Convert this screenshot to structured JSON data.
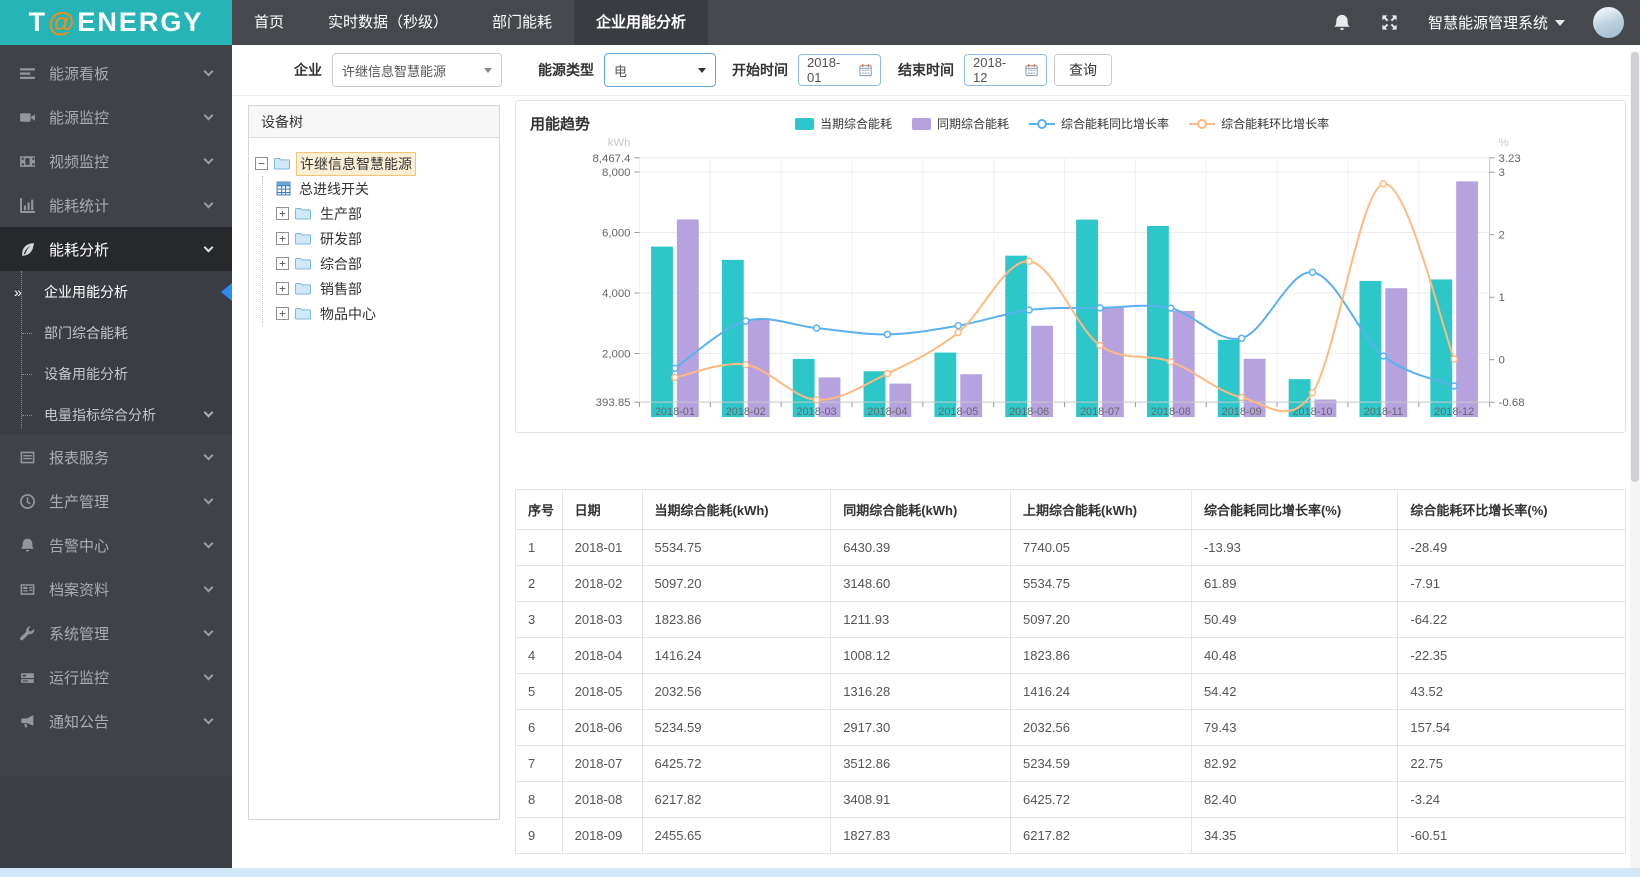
{
  "header": {
    "logo": {
      "part1": "T",
      "at": "@",
      "part2": "ENERGY"
    },
    "nav": [
      {
        "label": "首页",
        "active": false
      },
      {
        "label": "实时数据（秒级）",
        "active": false
      },
      {
        "label": "部门能耗",
        "active": false
      },
      {
        "label": "企业用能分析",
        "active": true
      }
    ],
    "system_title": "智慧能源管理系统"
  },
  "sidebar": {
    "items": [
      {
        "label": "能源看板",
        "icon": "dashboard-icon"
      },
      {
        "label": "能源监控",
        "icon": "camera-icon"
      },
      {
        "label": "视频监控",
        "icon": "film-icon"
      },
      {
        "label": "能耗统计",
        "icon": "bar-chart-icon"
      },
      {
        "label": "能耗分析",
        "icon": "leaf-icon",
        "expanded": true,
        "children": [
          {
            "label": "企业用能分析",
            "active": true
          },
          {
            "label": "部门综合能耗"
          },
          {
            "label": "设备用能分析"
          },
          {
            "label": "电量指标综合分析",
            "has_chevron": true
          }
        ]
      },
      {
        "label": "报表服务",
        "icon": "report-icon"
      },
      {
        "label": "生产管理",
        "icon": "clock-icon"
      },
      {
        "label": "告警中心",
        "icon": "bell-icon"
      },
      {
        "label": "档案资料",
        "icon": "archive-icon"
      },
      {
        "label": "系统管理",
        "icon": "wrench-icon"
      },
      {
        "label": "运行监控",
        "icon": "server-icon"
      },
      {
        "label": "通知公告",
        "icon": "megaphone-icon"
      }
    ]
  },
  "filters": {
    "enterprise_label": "企业",
    "enterprise_value": "许继信息智慧能源",
    "energy_type_label": "能源类型",
    "energy_type_value": "电",
    "start_label": "开始时间",
    "start_value": "2018-01",
    "end_label": "结束时间",
    "end_value": "2018-12",
    "query_button": "查询"
  },
  "tree": {
    "title": "设备树",
    "root": {
      "label": "许继信息智慧能源",
      "selected": true,
      "expanded": true
    },
    "children": [
      {
        "label": "总进线开关",
        "type": "device"
      },
      {
        "label": "生产部",
        "type": "folder"
      },
      {
        "label": "研发部",
        "type": "folder"
      },
      {
        "label": "综合部",
        "type": "folder"
      },
      {
        "label": "销售部",
        "type": "folder"
      },
      {
        "label": "物品中心",
        "type": "folder"
      }
    ]
  },
  "chart_data": {
    "type": "bar+line",
    "title": "用能趋势",
    "categories": [
      "2018-01",
      "2018-02",
      "2018-03",
      "2018-04",
      "2018-05",
      "2018-06",
      "2018-07",
      "2018-08",
      "2018-09",
      "2018-10",
      "2018-11",
      "2018-12"
    ],
    "series": [
      {
        "name": "当期综合能耗",
        "type": "bar",
        "axis": "left",
        "color": "#2ec7c9",
        "values": [
          5534.75,
          5097.2,
          1823.86,
          1416.24,
          2032.56,
          5234.59,
          6425.72,
          6217.82,
          2455.65,
          1154,
          4400,
          4450
        ]
      },
      {
        "name": "同期综合能耗",
        "type": "bar",
        "axis": "left",
        "color": "#b6a2de",
        "values": [
          6430.39,
          3148.6,
          1211.93,
          1008.12,
          1316.28,
          2917.3,
          3512.86,
          3408.91,
          1827.83,
          481,
          4160,
          7690
        ]
      },
      {
        "name": "综合能耗同比增长率",
        "type": "line",
        "axis": "right",
        "color": "#5ab1ef",
        "values": [
          -13.93,
          61.89,
          50.49,
          40.48,
          54.42,
          79.43,
          82.92,
          82.4,
          34.35,
          139.9,
          5.8,
          -42.1
        ]
      },
      {
        "name": "综合能耗环比增长率",
        "type": "line",
        "axis": "right",
        "color": "#ffb980",
        "values": [
          -28.49,
          -7.91,
          -64.22,
          -22.35,
          43.52,
          157.54,
          22.75,
          -3.24,
          -60.51,
          -53.0,
          281.3,
          1.1
        ]
      }
    ],
    "left_axis": {
      "unit": "kWh",
      "min": 393.85,
      "max": 8467.4,
      "ticks": [
        {
          "v": 8467.4,
          "label": "8,467.4"
        },
        {
          "v": 8000,
          "label": "8,000"
        },
        {
          "v": 6000,
          "label": "6,000"
        },
        {
          "v": 4000,
          "label": "4,000"
        },
        {
          "v": 2000,
          "label": "2,000"
        },
        {
          "v": 393.85,
          "label": "393.85"
        }
      ]
    },
    "right_axis": {
      "unit": "%",
      "min": -0.68,
      "max": 3.23,
      "ticks": [
        {
          "v": 3.23,
          "label": "3.23"
        },
        {
          "v": 3,
          "label": "3"
        },
        {
          "v": 2,
          "label": "2"
        },
        {
          "v": 1,
          "label": "1"
        },
        {
          "v": 0,
          "label": "0"
        },
        {
          "v": -0.68,
          "label": "-0.68"
        }
      ]
    },
    "legend_position": "top",
    "grid": true,
    "note": "line series plotted as value/100 against right axis"
  },
  "table": {
    "headers": [
      "序号",
      "日期",
      "当期综合能耗(kWh)",
      "同期综合能耗(kWh)",
      "上期综合能耗(kWh)",
      "综合能耗同比增长率(%)",
      "综合能耗环比增长率(%)"
    ],
    "rows": [
      [
        "1",
        "2018-01",
        "5534.75",
        "6430.39",
        "7740.05",
        "-13.93",
        "-28.49"
      ],
      [
        "2",
        "2018-02",
        "5097.20",
        "3148.60",
        "5534.75",
        "61.89",
        "-7.91"
      ],
      [
        "3",
        "2018-03",
        "1823.86",
        "1211.93",
        "5097.20",
        "50.49",
        "-64.22"
      ],
      [
        "4",
        "2018-04",
        "1416.24",
        "1008.12",
        "1823.86",
        "40.48",
        "-22.35"
      ],
      [
        "5",
        "2018-05",
        "2032.56",
        "1316.28",
        "1416.24",
        "54.42",
        "43.52"
      ],
      [
        "6",
        "2018-06",
        "5234.59",
        "2917.30",
        "2032.56",
        "79.43",
        "157.54"
      ],
      [
        "7",
        "2018-07",
        "6425.72",
        "3512.86",
        "5234.59",
        "82.92",
        "22.75"
      ],
      [
        "8",
        "2018-08",
        "6217.82",
        "3408.91",
        "6425.72",
        "82.40",
        "-3.24"
      ],
      [
        "9",
        "2018-09",
        "2455.65",
        "1827.83",
        "6217.82",
        "34.35",
        "-60.51"
      ]
    ]
  }
}
